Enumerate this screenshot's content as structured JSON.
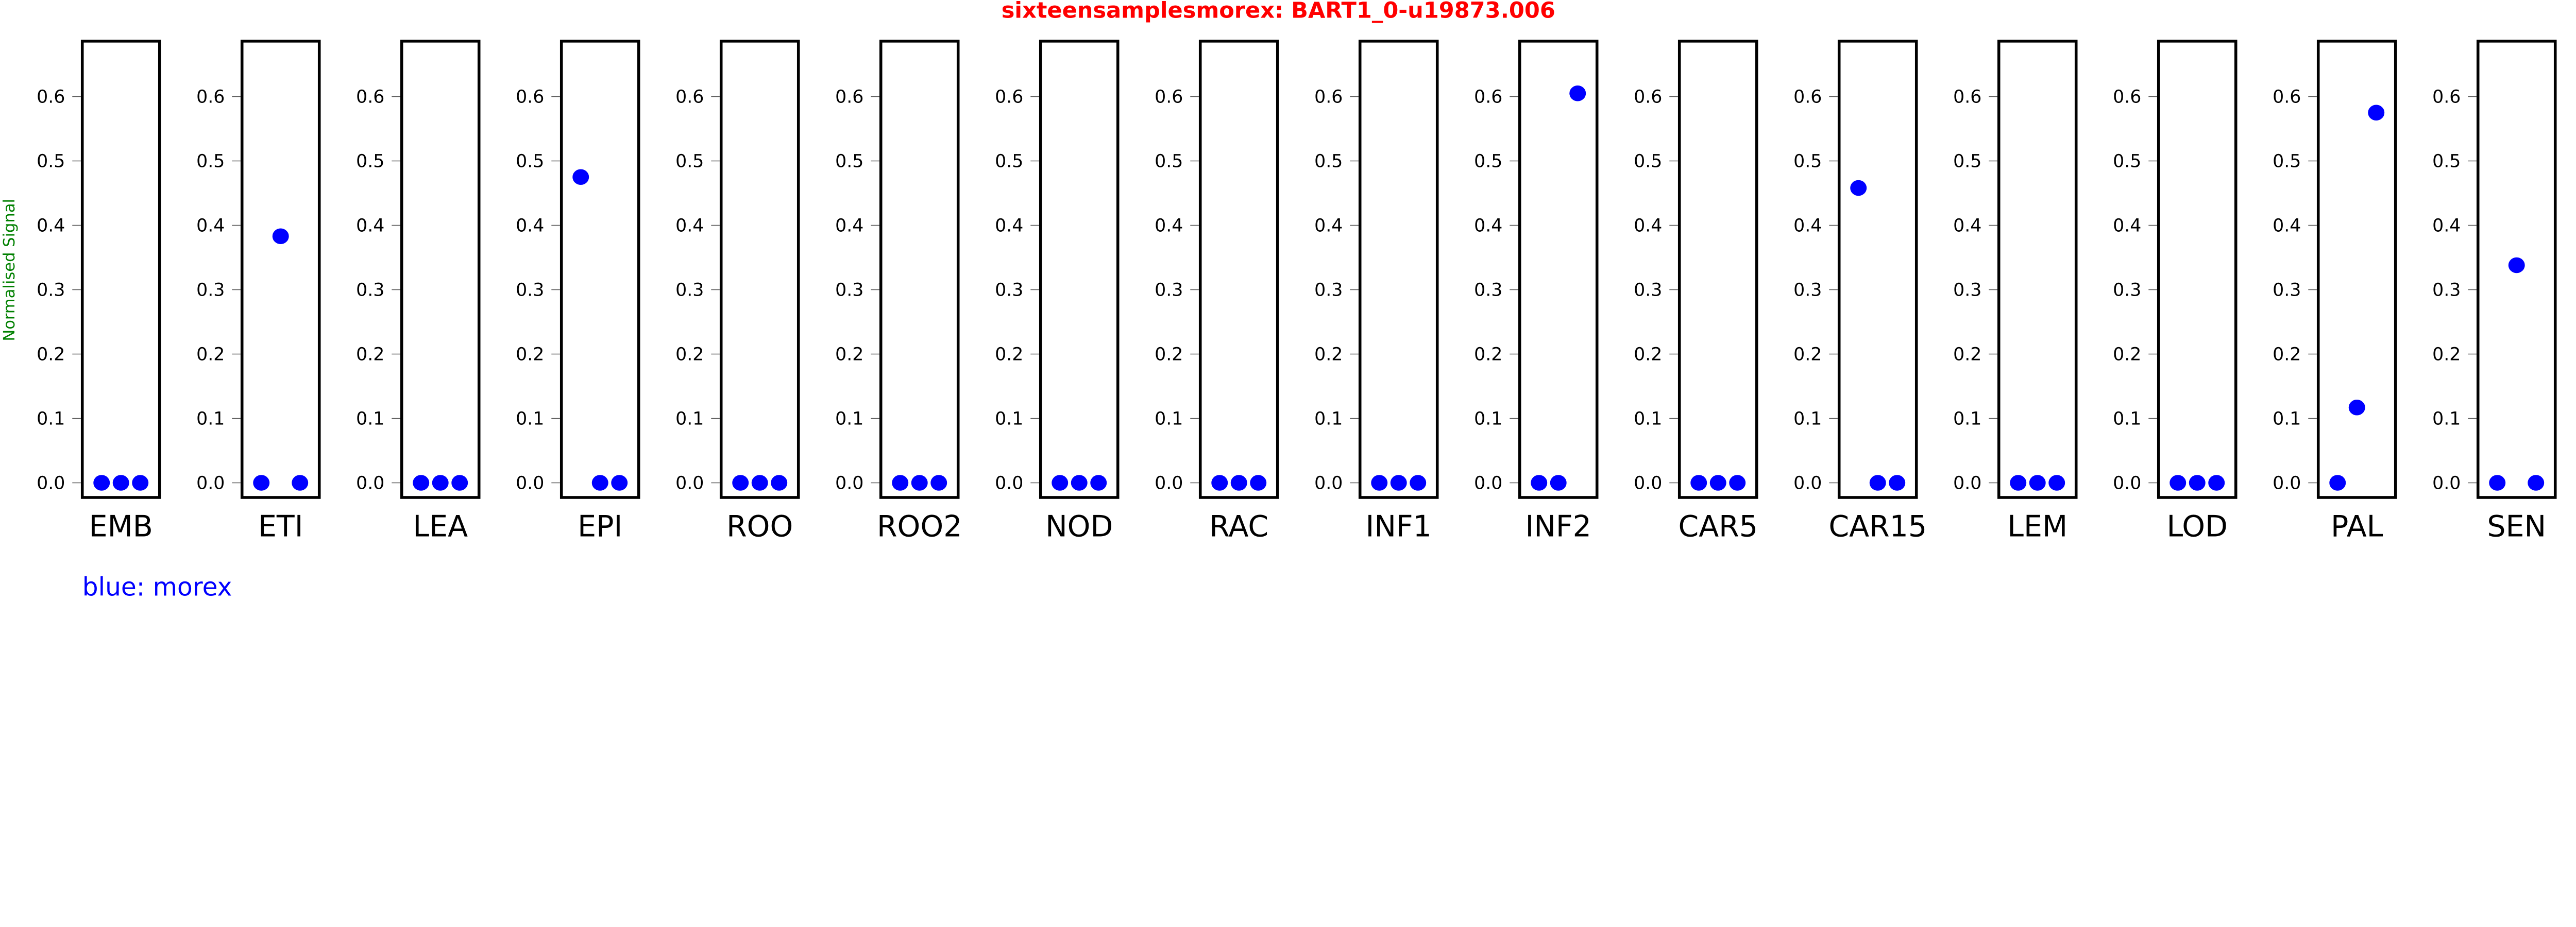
{
  "chart_data": {
    "type": "scatter",
    "title": "sixteensamplesmorex: BART1_0-u19873.006",
    "ylabel": "Normalised Signal",
    "ylim": [
      -0.025,
      0.63
    ],
    "yticks": [
      "0.0",
      "0.1",
      "0.2",
      "0.3",
      "0.4",
      "0.5",
      "0.6"
    ],
    "grid": false,
    "legend_text": "blue: morex",
    "legend_placement": "bottom-left",
    "colors": {
      "points": "#0000ff",
      "title": "#ff0000",
      "ylabel": "#008000"
    },
    "panels": [
      {
        "category": "EMB",
        "values": [
          0,
          0,
          0
        ]
      },
      {
        "category": "ETI",
        "values": [
          0,
          0.383,
          0
        ]
      },
      {
        "category": "LEA",
        "values": [
          0,
          0,
          0
        ]
      },
      {
        "category": "EPI",
        "values": [
          0.475,
          0,
          0
        ]
      },
      {
        "category": "ROO",
        "values": [
          0,
          0,
          0
        ]
      },
      {
        "category": "ROO2",
        "values": [
          0,
          0,
          0
        ]
      },
      {
        "category": "NOD",
        "values": [
          0,
          0,
          0
        ]
      },
      {
        "category": "RAC",
        "values": [
          0,
          0,
          0
        ]
      },
      {
        "category": "INF1",
        "values": [
          0,
          0,
          0
        ]
      },
      {
        "category": "INF2",
        "values": [
          0,
          0,
          0.605
        ]
      },
      {
        "category": "CAR5",
        "values": [
          0,
          0,
          0
        ]
      },
      {
        "category": "CAR15",
        "values": [
          0.458,
          0,
          0
        ]
      },
      {
        "category": "LEM",
        "values": [
          0,
          0,
          0
        ]
      },
      {
        "category": "LOD",
        "values": [
          0,
          0,
          0
        ]
      },
      {
        "category": "PAL",
        "values": [
          0,
          0.117,
          0.575
        ]
      },
      {
        "category": "SEN",
        "values": [
          0,
          0.338,
          0
        ]
      }
    ]
  }
}
